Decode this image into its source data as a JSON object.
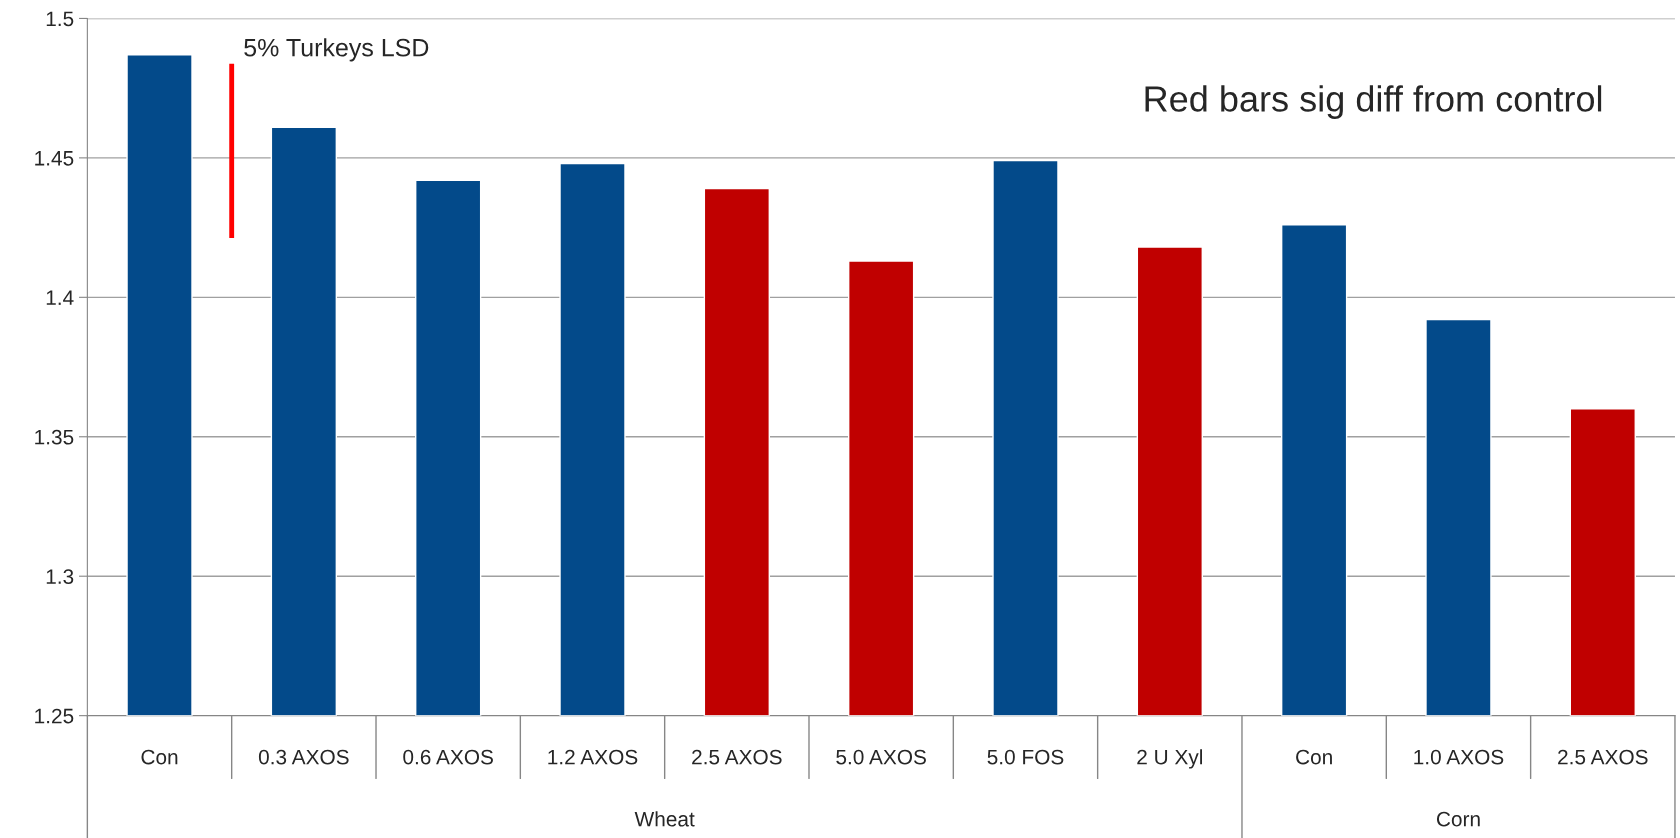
{
  "chart_data": {
    "type": "bar",
    "categories": [
      "Con",
      "0.3 AXOS",
      "0.6 AXOS",
      "1.2 AXOS",
      "2.5 AXOS",
      "5.0 AXOS",
      "5.0 FOS",
      "2 U Xyl",
      "Con",
      "1.0 AXOS",
      "2.5 AXOS"
    ],
    "series": [
      {
        "values": [
          1.487,
          1.461,
          1.442,
          1.448,
          1.439,
          1.413,
          1.449,
          1.418,
          1.426,
          1.392,
          1.36
        ],
        "colors": [
          "#034a8a",
          "#034a8a",
          "#034a8a",
          "#034a8a",
          "#c00000",
          "#c00000",
          "#034a8a",
          "#c00000",
          "#034a8a",
          "#034a8a",
          "#c00000"
        ]
      }
    ],
    "ylim": [
      1.25,
      1.5
    ],
    "yticks": [
      1.25,
      1.3,
      1.35,
      1.4,
      1.45,
      1.5
    ],
    "grid": "y",
    "annotations": [
      {
        "text": "5% Turkeys LSD"
      },
      {
        "text": "Red bars sig diff from control"
      },
      {
        "text": "Wheat"
      },
      {
        "text": "Corn"
      }
    ]
  }
}
